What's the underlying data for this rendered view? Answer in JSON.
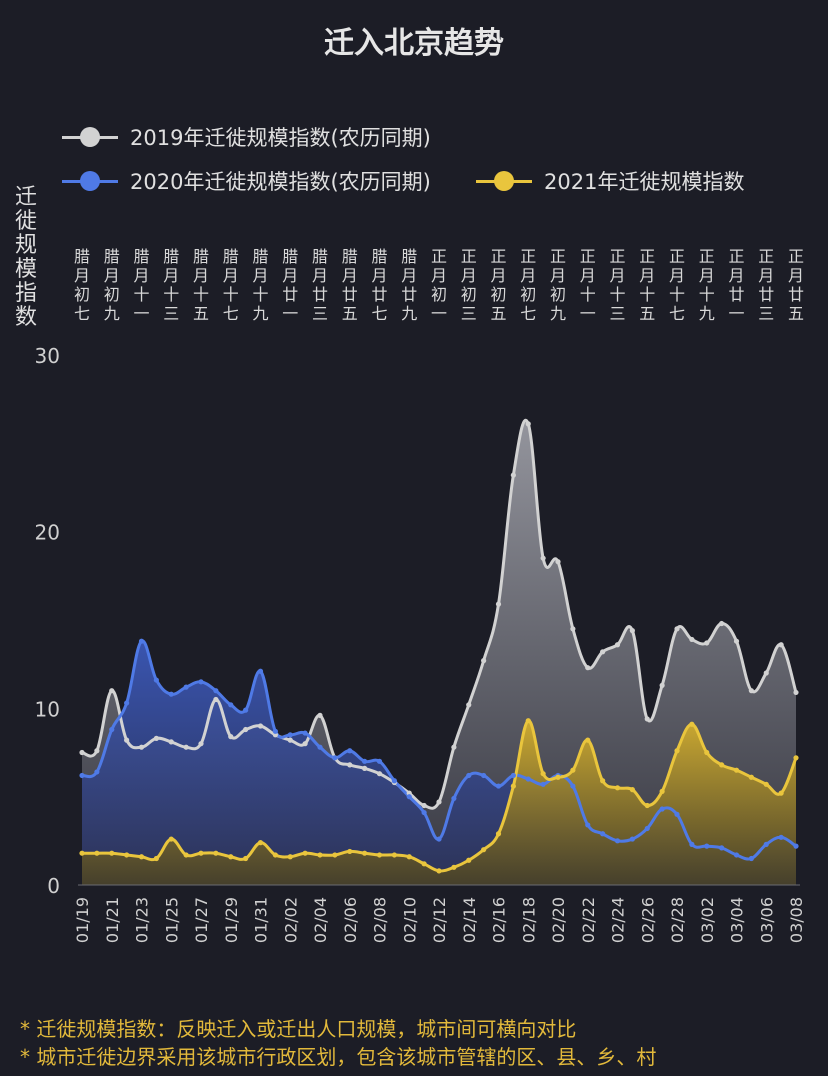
{
  "title": "迁入北京趋势",
  "legend": [
    {
      "label": "2019年迁徙规模指数(农历同期)",
      "color": "#d2d2d2"
    },
    {
      "label": "2020年迁徙规模指数(农历同期)",
      "color": "#4f7ae6"
    },
    {
      "label": "2021年迁徙规模指数",
      "color": "#e9c53d"
    }
  ],
  "y_axis_title": "迁徙规模指数",
  "notes": [
    "* 迁徙规模指数：反映迁入或迁出人口规模，城市间可横向对比",
    "* 城市迁徙边界采用该城市行政区划，包含该城市管辖的区、县、乡、村"
  ],
  "chart_data": {
    "type": "area",
    "title": "迁入北京趋势",
    "ylabel": "迁徙规模指数",
    "ylim": [
      0,
      30
    ],
    "yticks": [
      0,
      10,
      20,
      30
    ],
    "grid": false,
    "legend_position": "top-left",
    "x_dates": [
      "01/19",
      "01/20",
      "01/21",
      "01/22",
      "01/23",
      "01/24",
      "01/25",
      "01/26",
      "01/27",
      "01/28",
      "01/29",
      "01/30",
      "01/31",
      "02/01",
      "02/02",
      "02/03",
      "02/04",
      "02/05",
      "02/06",
      "02/07",
      "02/08",
      "02/09",
      "02/10",
      "02/11",
      "02/12",
      "02/13",
      "02/14",
      "02/15",
      "02/16",
      "02/17",
      "02/18",
      "02/19",
      "02/20",
      "02/21",
      "02/22",
      "02/23",
      "02/24",
      "02/25",
      "02/26",
      "02/27",
      "02/28",
      "03/01",
      "03/02",
      "03/03",
      "03/04",
      "03/05",
      "03/06",
      "03/07",
      "03/08"
    ],
    "x_tick_labels": [
      "01/19",
      "01/21",
      "01/23",
      "01/25",
      "01/27",
      "01/29",
      "01/31",
      "02/02",
      "02/04",
      "02/06",
      "02/08",
      "02/10",
      "02/12",
      "02/14",
      "02/16",
      "02/18",
      "02/20",
      "02/22",
      "02/24",
      "02/26",
      "02/28",
      "03/02",
      "03/04",
      "03/06",
      "03/08"
    ],
    "lunar_tick_labels": [
      "腊月初七",
      "腊月初九",
      "腊月十一",
      "腊月十三",
      "腊月十五",
      "腊月十七",
      "腊月十九",
      "腊月廿一",
      "腊月廿三",
      "腊月廿五",
      "腊月廿七",
      "腊月廿九",
      "正月初一",
      "正月初三",
      "正月初五",
      "正月初七",
      "正月初九",
      "正月十一",
      "正月十三",
      "正月十五",
      "正月十七",
      "正月十九",
      "正月廿一",
      "正月廿三",
      "正月廿五"
    ],
    "series": [
      {
        "name": "2019年迁徙规模指数(农历同期)",
        "color": "#d2d2d2",
        "values": [
          7.5,
          7.6,
          11,
          8.2,
          7.8,
          8.3,
          8.1,
          7.8,
          8.0,
          10.5,
          8.4,
          8.8,
          9.0,
          8.5,
          8.2,
          8.0,
          9.6,
          7.2,
          6.8,
          6.6,
          6.3,
          5.8,
          5.2,
          4.5,
          4.7,
          7.8,
          10.2,
          12.7,
          15.9,
          23.2,
          26.1,
          18.5,
          18.3,
          14.5,
          12.3,
          13.2,
          13.6,
          14.4,
          9.4,
          11.3,
          14.5,
          13.9,
          13.7,
          14.8,
          13.8,
          11.0,
          12.0,
          13.6,
          10.9
        ]
      },
      {
        "name": "2020年迁徙规模指数(农历同期)",
        "color": "#4f7ae6",
        "values": [
          6.2,
          6.4,
          8.8,
          10.3,
          13.8,
          11.6,
          10.8,
          11.2,
          11.5,
          11.0,
          10.2,
          9.9,
          12.1,
          8.7,
          8.5,
          8.6,
          7.8,
          7.2,
          7.6,
          7.0,
          7.0,
          5.9,
          5.0,
          4.1,
          2.6,
          4.9,
          6.2,
          6.2,
          5.6,
          6.2,
          6.0,
          5.7,
          6.2,
          5.6,
          3.4,
          2.9,
          2.5,
          2.6,
          3.2,
          4.3,
          4.0,
          2.3,
          2.2,
          2.1,
          1.7,
          1.5,
          2.3,
          2.7,
          2.2
        ]
      },
      {
        "name": "2021年迁徙规模指数",
        "color": "#e9c53d",
        "values": [
          1.8,
          1.8,
          1.8,
          1.7,
          1.6,
          1.5,
          2.6,
          1.7,
          1.8,
          1.8,
          1.6,
          1.5,
          2.4,
          1.7,
          1.6,
          1.8,
          1.7,
          1.7,
          1.9,
          1.8,
          1.7,
          1.7,
          1.6,
          1.2,
          0.8,
          1.0,
          1.4,
          2.0,
          2.9,
          5.6,
          9.3,
          6.3,
          6.1,
          6.5,
          8.2,
          5.9,
          5.5,
          5.4,
          4.5,
          5.3,
          7.6,
          9.1,
          7.5,
          6.8,
          6.5,
          6.1,
          5.7,
          5.2,
          7.2
        ]
      }
    ]
  }
}
